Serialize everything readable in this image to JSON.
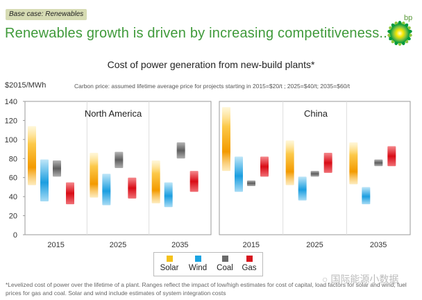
{
  "tag": "Base case: Renewables",
  "headline": "Renewables growth is driven by increasing competitiveness...",
  "brand": "bp",
  "watermark": "国际能源小数据",
  "chart_data": {
    "type": "range-bar",
    "title": "Cost of power generation from new-build plants*",
    "ylabel": "$2015/MWh",
    "note": "Carbon price: assumed lifetime average price for projects starting in 2015=$20/t ; 2025=$40/t; 2035=$60/t",
    "ylim": [
      0,
      140
    ],
    "yticks": [
      0,
      20,
      40,
      60,
      80,
      100,
      120,
      140
    ],
    "grid": false,
    "legend_position": "bottom-center",
    "categories": [
      "2015",
      "2025",
      "2035"
    ],
    "series_names": [
      "Solar",
      "Wind",
      "Coal",
      "Gas"
    ],
    "colors": {
      "Solar": "#f5a800",
      "Wind": "#1ba4e2",
      "Coal": "#6b6b6b",
      "Gas": "#e0121a"
    },
    "panels": [
      {
        "region": "North America",
        "ranges": {
          "Solar": [
            [
              52,
              114
            ],
            [
              39,
              86
            ],
            [
              33,
              78
            ]
          ],
          "Wind": [
            [
              35,
              79
            ],
            [
              31,
              64
            ],
            [
              29,
              55
            ]
          ],
          "Coal": [
            [
              61,
              78
            ],
            [
              70,
              87
            ],
            [
              80,
              97
            ]
          ],
          "Gas": [
            [
              32,
              55
            ],
            [
              38,
              60
            ],
            [
              45,
              67
            ]
          ]
        }
      },
      {
        "region": "China",
        "ranges": {
          "Solar": [
            [
              67,
              134
            ],
            [
              52,
              99
            ],
            [
              53,
              97
            ]
          ],
          "Wind": [
            [
              45,
              82
            ],
            [
              36,
              61
            ],
            [
              32,
              50
            ]
          ],
          "Coal": [
            [
              51,
              57
            ],
            [
              61,
              67
            ],
            [
              72,
              79
            ]
          ],
          "Gas": [
            [
              61,
              82
            ],
            [
              65,
              86
            ],
            [
              72,
              93
            ]
          ]
        }
      }
    ]
  },
  "footnote": "*Levelized cost of power over the lifetime of a plant. Ranges reflect the impact of low/high estimates for cost of capital, load factors for solar and wind; fuel prices for gas and coal. Solar and wind include estimates of system integration costs"
}
